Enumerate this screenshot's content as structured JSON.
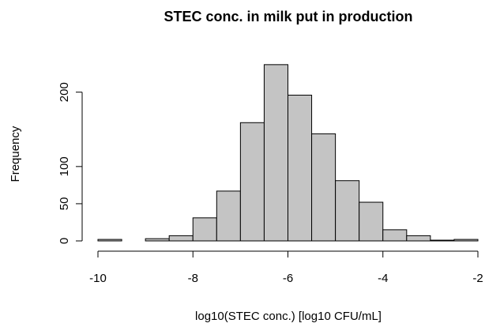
{
  "chart_data": {
    "type": "histogram",
    "title": "STEC conc. in milk put in production",
    "x_label": "log10(STEC conc.)  [log10 CFU/mL]",
    "y_label": "Frequency",
    "bins": [
      -10,
      -9.5,
      -9,
      -8.5,
      -8,
      -7.5,
      -7,
      -6.5,
      -6,
      -5.5,
      -5,
      -4.5,
      -4,
      -3.5,
      -3,
      -2.5,
      -2
    ],
    "values": [
      2,
      0,
      3,
      7,
      31,
      67,
      159,
      237,
      196,
      144,
      81,
      52,
      15,
      7,
      1,
      2
    ],
    "color": "#c4c4c4",
    "xlim": [
      -10,
      -2
    ],
    "xticks": [
      -10,
      -8,
      -6,
      -4,
      -2
    ],
    "ylim": [
      0,
      250
    ],
    "yticks": [
      0,
      50,
      100,
      200
    ]
  }
}
